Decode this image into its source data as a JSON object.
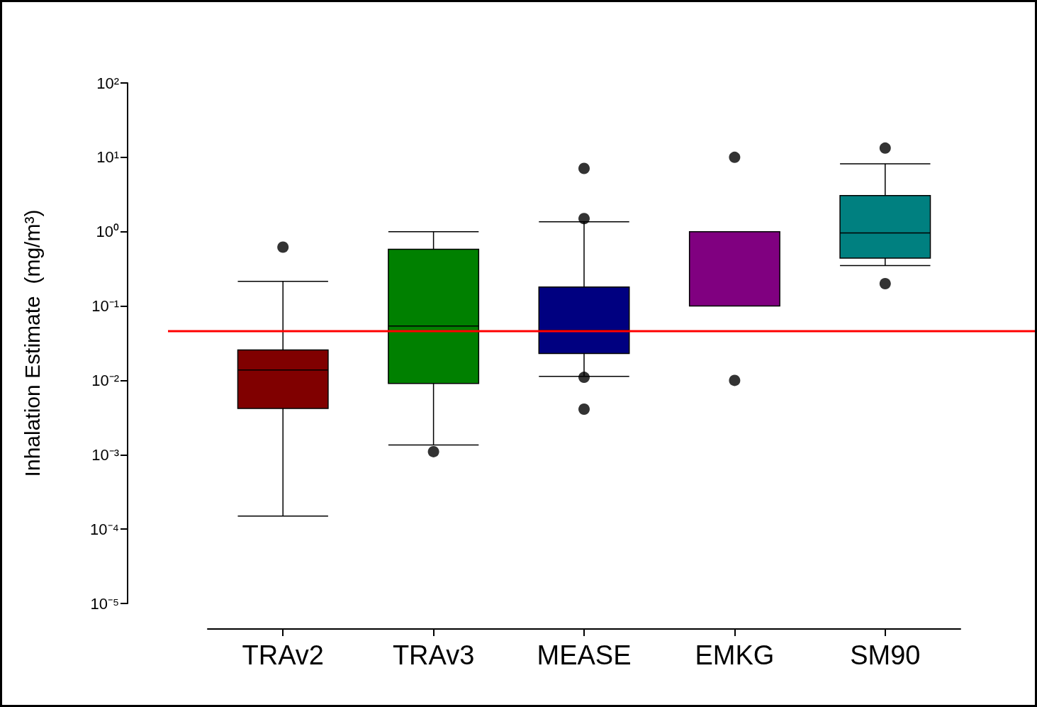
{
  "chart_data": {
    "type": "box",
    "ylabel": "Inhalation Estimate  (mg/m³)",
    "categories": [
      "TRAv2",
      "TRAv3",
      "MEASE",
      "EMKG",
      "SM90"
    ],
    "boxes": [
      {
        "low": 0.00015,
        "q1": 0.0042,
        "median": 0.0138,
        "q3": 0.0256,
        "high": 0.215
      },
      {
        "low": 0.00135,
        "q1": 0.0091,
        "median": 0.054,
        "q3": 0.58,
        "high": 1.0
      },
      {
        "low": 0.0113,
        "q1": 0.023,
        "median": 0.047,
        "q3": 0.18,
        "high": 1.36
      },
      {
        "low": 0.1,
        "q1": 0.1,
        "median": 1.0,
        "q3": 1.0,
        "high": 1.0
      },
      {
        "low": 0.35,
        "q1": 0.44,
        "median": 0.96,
        "q3": 3.06,
        "high": 8.2
      }
    ],
    "colors": [
      "#800000",
      "#008000",
      "#000080",
      "#800080",
      "#008080"
    ],
    "series": [
      {
        "type": "scatter",
        "color": "#000000",
        "x": [
          "TRAv2",
          "TRAv3",
          "MEASE",
          "MEASE",
          "MEASE",
          "MEASE",
          "EMKG",
          "EMKG",
          "SM90",
          "SM90"
        ],
        "values": [
          0.62,
          0.0011,
          7.1,
          1.5,
          0.011,
          0.0041,
          10,
          0.01,
          13.3,
          0.2
        ]
      }
    ],
    "marker": "circle",
    "log": true,
    "ylim": [
      1e-05,
      100
    ],
    "yticks": [
      {
        "value": 1e-05,
        "label": "10⁻⁵"
      },
      {
        "value": 0.0001,
        "label": "10⁻⁴"
      },
      {
        "value": 0.001,
        "label": "10⁻³"
      },
      {
        "value": 0.01,
        "label": "10⁻²"
      },
      {
        "value": 0.1,
        "label": "10⁻¹"
      },
      {
        "value": 1,
        "label": "10⁰"
      },
      {
        "value": 10,
        "label": "10¹"
      },
      {
        "value": 100,
        "label": "10²"
      }
    ],
    "ref_lines": [
      {
        "axis": "y",
        "value": 0.046,
        "color": "#ff0000"
      }
    ],
    "grid": false
  }
}
